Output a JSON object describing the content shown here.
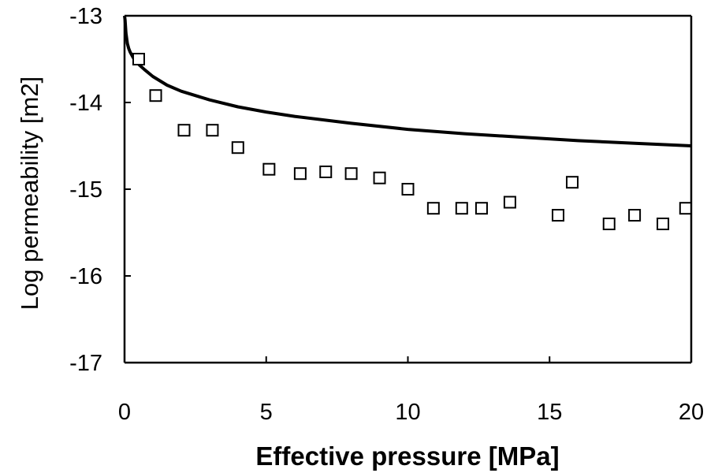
{
  "chart_data": {
    "type": "scatter",
    "title": "",
    "xlabel": "Effective pressure [MPa]",
    "ylabel": "Log permeability [m2]",
    "xlim": [
      0,
      20
    ],
    "ylim": [
      -17,
      -13
    ],
    "xticks": [
      0,
      5,
      10,
      15,
      20
    ],
    "yticks": [
      -13,
      -14,
      -15,
      -16,
      -17
    ],
    "grid": false,
    "legend": "none",
    "series": [
      {
        "type": "scatter",
        "marker": "open-square",
        "color": "#000000",
        "x": [
          0.5,
          1.1,
          2.1,
          3.1,
          4.0,
          5.1,
          6.2,
          7.1,
          8.0,
          9.0,
          10.0,
          10.9,
          11.9,
          12.6,
          13.6,
          15.3,
          15.8,
          17.1,
          18.0,
          19.0,
          19.8
        ],
        "y": [
          -13.5,
          -13.92,
          -14.32,
          -14.32,
          -14.52,
          -14.77,
          -14.82,
          -14.8,
          -14.82,
          -14.87,
          -15.0,
          -15.22,
          -15.22,
          -15.22,
          -15.15,
          -15.3,
          -14.92,
          -15.4,
          -15.3,
          -15.4,
          -15.22
        ]
      },
      {
        "type": "line",
        "color": "#000000",
        "x": [
          0.0,
          0.02,
          0.05,
          0.1,
          0.15,
          0.2,
          0.3,
          0.4,
          0.5,
          0.7,
          1.0,
          1.5,
          2.0,
          3.0,
          4.0,
          5.0,
          6.0,
          8.0,
          10.0,
          12.0,
          14.0,
          16.0,
          18.0,
          20.0
        ],
        "y": [
          -12.9,
          -13.05,
          -13.2,
          -13.32,
          -13.38,
          -13.42,
          -13.48,
          -13.53,
          -13.56,
          -13.62,
          -13.7,
          -13.8,
          -13.87,
          -13.97,
          -14.05,
          -14.11,
          -14.16,
          -14.24,
          -14.31,
          -14.36,
          -14.4,
          -14.44,
          -14.47,
          -14.5
        ]
      }
    ]
  }
}
